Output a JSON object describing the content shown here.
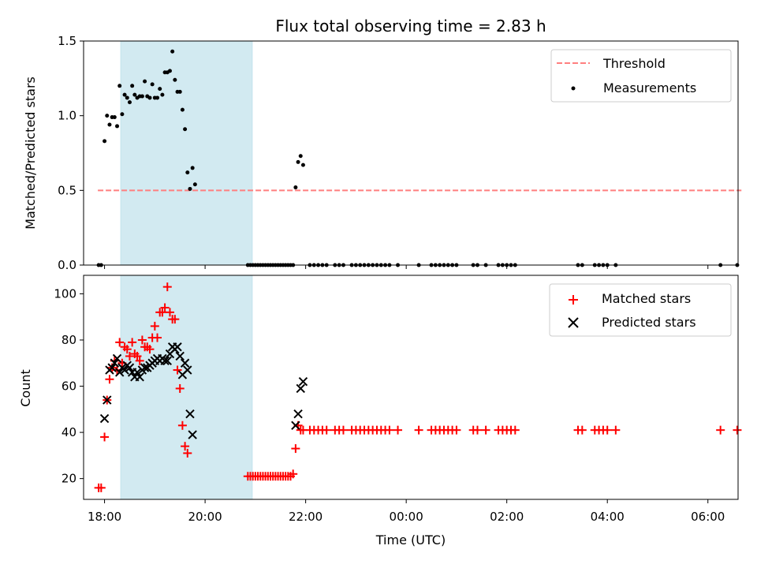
{
  "chart_data": [
    {
      "type": "scatter",
      "title": "Flux total observing time = 2.83 h",
      "xlabel": "",
      "ylabel": "Matched/Predicted stars",
      "xlim": [
        "17:35",
        "06:36 (+1d)"
      ],
      "ylim": [
        0,
        1.5
      ],
      "yticks": [
        "0.0",
        "0.5",
        "1.0",
        "1.5"
      ],
      "highlight_span": {
        "from": "17:58",
        "to": "20:48",
        "color": "#add8e6"
      },
      "threshold": {
        "name": "Threshold",
        "value": 0.5,
        "from": "17:52",
        "to": "06:40",
        "color": "#ff7f7f",
        "style": "dashed"
      },
      "legend": {
        "position": "top-right",
        "entries": [
          "Threshold",
          "Measurements"
        ]
      },
      "series": [
        {
          "name": "Measurements",
          "marker": "dot",
          "color": "#000000",
          "points": [
            [
              "17:53",
              0
            ],
            [
              "17:56",
              0
            ],
            [
              "18:00",
              0.83
            ],
            [
              "18:03",
              1.0
            ],
            [
              "18:06",
              0.94
            ],
            [
              "18:09",
              0.99
            ],
            [
              "18:12",
              0.99
            ],
            [
              "18:15",
              0.93
            ],
            [
              "18:18",
              1.2
            ],
            [
              "18:21",
              1.01
            ],
            [
              "18:24",
              1.14
            ],
            [
              "18:27",
              1.12
            ],
            [
              "18:30",
              1.09
            ],
            [
              "18:33",
              1.2
            ],
            [
              "18:36",
              1.14
            ],
            [
              "18:39",
              1.12
            ],
            [
              "18:42",
              1.13
            ],
            [
              "18:45",
              1.13
            ],
            [
              "18:48",
              1.23
            ],
            [
              "18:51",
              1.13
            ],
            [
              "18:54",
              1.12
            ],
            [
              "18:57",
              1.21
            ],
            [
              "19:00",
              1.12
            ],
            [
              "19:03",
              1.12
            ],
            [
              "19:06",
              1.18
            ],
            [
              "19:09",
              1.14
            ],
            [
              "19:12",
              1.29
            ],
            [
              "19:15",
              1.29
            ],
            [
              "19:18",
              1.3
            ],
            [
              "19:21",
              1.43
            ],
            [
              "19:24",
              1.24
            ],
            [
              "19:27",
              1.16
            ],
            [
              "19:30",
              1.16
            ],
            [
              "19:33",
              1.04
            ],
            [
              "19:36",
              0.91
            ],
            [
              "19:39",
              0.62
            ],
            [
              "19:42",
              0.51
            ],
            [
              "19:45",
              0.65
            ],
            [
              "19:48",
              0.54
            ],
            [
              "20:51",
              0
            ],
            [
              "20:54",
              0
            ],
            [
              "20:57",
              0
            ],
            [
              "21:00",
              0
            ],
            [
              "21:03",
              0
            ],
            [
              "21:06",
              0
            ],
            [
              "21:09",
              0
            ],
            [
              "21:12",
              0
            ],
            [
              "21:15",
              0
            ],
            [
              "21:18",
              0
            ],
            [
              "21:21",
              0
            ],
            [
              "21:24",
              0
            ],
            [
              "21:27",
              0
            ],
            [
              "21:30",
              0
            ],
            [
              "21:33",
              0
            ],
            [
              "21:36",
              0
            ],
            [
              "21:39",
              0
            ],
            [
              "21:42",
              0
            ],
            [
              "21:45",
              0
            ],
            [
              "21:48",
              0.52
            ],
            [
              "21:51",
              0.69
            ],
            [
              "21:54",
              0.73
            ],
            [
              "21:57",
              0.67
            ],
            [
              "22:05",
              0
            ],
            [
              "22:10",
              0
            ],
            [
              "22:15",
              0
            ],
            [
              "22:20",
              0
            ],
            [
              "22:25",
              0
            ],
            [
              "22:35",
              0
            ],
            [
              "22:40",
              0
            ],
            [
              "22:45",
              0
            ],
            [
              "22:55",
              0
            ],
            [
              "23:00",
              0
            ],
            [
              "23:05",
              0
            ],
            [
              "23:10",
              0
            ],
            [
              "23:15",
              0
            ],
            [
              "23:20",
              0
            ],
            [
              "23:25",
              0
            ],
            [
              "23:30",
              0
            ],
            [
              "23:35",
              0
            ],
            [
              "23:40",
              0
            ],
            [
              "23:50",
              0
            ],
            [
              "00:15",
              0
            ],
            [
              "00:30",
              0
            ],
            [
              "00:35",
              0
            ],
            [
              "00:40",
              0
            ],
            [
              "00:45",
              0
            ],
            [
              "00:50",
              0
            ],
            [
              "00:55",
              0
            ],
            [
              "01:00",
              0
            ],
            [
              "01:20",
              0
            ],
            [
              "01:25",
              0
            ],
            [
              "01:35",
              0
            ],
            [
              "01:50",
              0
            ],
            [
              "01:55",
              0
            ],
            [
              "02:00",
              0
            ],
            [
              "02:05",
              0
            ],
            [
              "02:10",
              0
            ],
            [
              "03:25",
              0
            ],
            [
              "03:30",
              0
            ],
            [
              "03:45",
              0
            ],
            [
              "03:50",
              0
            ],
            [
              "03:55",
              0
            ],
            [
              "04:00",
              0
            ],
            [
              "04:10",
              0
            ],
            [
              "06:15",
              0
            ],
            [
              "06:35",
              0
            ]
          ]
        }
      ]
    },
    {
      "type": "scatter",
      "title": "",
      "xlabel": "Time (UTC)",
      "ylabel": "Count",
      "xlim": [
        "17:35",
        "06:36 (+1d)"
      ],
      "ylim": [
        11,
        108
      ],
      "xticks": [
        "18:00",
        "20:00",
        "22:00",
        "00:00",
        "02:00",
        "04:00",
        "06:00"
      ],
      "yticks": [
        "20",
        "40",
        "60",
        "80",
        "100"
      ],
      "highlight_span": {
        "from": "17:58",
        "to": "20:48",
        "color": "#add8e6"
      },
      "legend": {
        "position": "top-right",
        "entries": [
          "Matched stars",
          "Predicted stars"
        ]
      },
      "series": [
        {
          "name": "Matched stars",
          "marker": "plus",
          "color": "#ff0000",
          "points": [
            [
              "17:53",
              16
            ],
            [
              "17:56",
              16
            ],
            [
              "18:00",
              38
            ],
            [
              "18:03",
              54
            ],
            [
              "18:06",
              63
            ],
            [
              "18:09",
              68
            ],
            [
              "18:12",
              71
            ],
            [
              "18:15",
              67
            ],
            [
              "18:18",
              79
            ],
            [
              "18:21",
              70
            ],
            [
              "18:24",
              77
            ],
            [
              "18:27",
              76
            ],
            [
              "18:30",
              73
            ],
            [
              "18:33",
              79
            ],
            [
              "18:36",
              74
            ],
            [
              "18:39",
              73
            ],
            [
              "18:42",
              71
            ],
            [
              "18:45",
              80
            ],
            [
              "18:48",
              77
            ],
            [
              "18:51",
              77
            ],
            [
              "18:54",
              76
            ],
            [
              "18:57",
              81
            ],
            [
              "19:00",
              86
            ],
            [
              "19:03",
              81
            ],
            [
              "19:06",
              92
            ],
            [
              "19:09",
              92
            ],
            [
              "19:12",
              94
            ],
            [
              "19:15",
              103
            ],
            [
              "19:18",
              92
            ],
            [
              "19:21",
              89
            ],
            [
              "19:24",
              89
            ],
            [
              "19:27",
              67
            ],
            [
              "19:30",
              59
            ],
            [
              "19:33",
              43
            ],
            [
              "19:36",
              34
            ],
            [
              "19:39",
              31
            ],
            [
              "20:51",
              21
            ],
            [
              "20:54",
              21
            ],
            [
              "20:57",
              21
            ],
            [
              "21:00",
              21
            ],
            [
              "21:03",
              21
            ],
            [
              "21:06",
              21
            ],
            [
              "21:09",
              21
            ],
            [
              "21:12",
              21
            ],
            [
              "21:15",
              21
            ],
            [
              "21:18",
              21
            ],
            [
              "21:21",
              21
            ],
            [
              "21:24",
              21
            ],
            [
              "21:27",
              21
            ],
            [
              "21:30",
              21
            ],
            [
              "21:33",
              21
            ],
            [
              "21:36",
              21
            ],
            [
              "21:39",
              21
            ],
            [
              "21:42",
              21
            ],
            [
              "21:45",
              22
            ],
            [
              "21:48",
              33
            ],
            [
              "21:51",
              43
            ],
            [
              "21:54",
              41
            ],
            [
              "21:57",
              41
            ],
            [
              "22:05",
              41
            ],
            [
              "22:10",
              41
            ],
            [
              "22:15",
              41
            ],
            [
              "22:20",
              41
            ],
            [
              "22:25",
              41
            ],
            [
              "22:35",
              41
            ],
            [
              "22:40",
              41
            ],
            [
              "22:45",
              41
            ],
            [
              "22:55",
              41
            ],
            [
              "23:00",
              41
            ],
            [
              "23:05",
              41
            ],
            [
              "23:10",
              41
            ],
            [
              "23:15",
              41
            ],
            [
              "23:20",
              41
            ],
            [
              "23:25",
              41
            ],
            [
              "23:30",
              41
            ],
            [
              "23:35",
              41
            ],
            [
              "23:40",
              41
            ],
            [
              "23:50",
              41
            ],
            [
              "00:15",
              41
            ],
            [
              "00:30",
              41
            ],
            [
              "00:35",
              41
            ],
            [
              "00:40",
              41
            ],
            [
              "00:45",
              41
            ],
            [
              "00:50",
              41
            ],
            [
              "00:55",
              41
            ],
            [
              "01:00",
              41
            ],
            [
              "01:20",
              41
            ],
            [
              "01:25",
              41
            ],
            [
              "01:35",
              41
            ],
            [
              "01:50",
              41
            ],
            [
              "01:55",
              41
            ],
            [
              "02:00",
              41
            ],
            [
              "02:05",
              41
            ],
            [
              "02:10",
              41
            ],
            [
              "03:25",
              41
            ],
            [
              "03:30",
              41
            ],
            [
              "03:45",
              41
            ],
            [
              "03:50",
              41
            ],
            [
              "03:55",
              41
            ],
            [
              "04:00",
              41
            ],
            [
              "04:10",
              41
            ],
            [
              "06:15",
              41
            ],
            [
              "06:35",
              41
            ]
          ]
        },
        {
          "name": "Predicted stars",
          "marker": "x",
          "color": "#000000",
          "points": [
            [
              "18:00",
              46
            ],
            [
              "18:03",
              54
            ],
            [
              "18:06",
              67
            ],
            [
              "18:09",
              68
            ],
            [
              "18:12",
              70
            ],
            [
              "18:15",
              72
            ],
            [
              "18:18",
              66
            ],
            [
              "18:21",
              68
            ],
            [
              "18:24",
              67
            ],
            [
              "18:27",
              69
            ],
            [
              "18:30",
              68
            ],
            [
              "18:33",
              66
            ],
            [
              "18:36",
              64
            ],
            [
              "18:39",
              66
            ],
            [
              "18:42",
              64
            ],
            [
              "18:45",
              67
            ],
            [
              "18:48",
              68
            ],
            [
              "18:51",
              68
            ],
            [
              "18:54",
              69
            ],
            [
              "18:57",
              70
            ],
            [
              "19:00",
              71
            ],
            [
              "19:03",
              72
            ],
            [
              "19:06",
              71
            ],
            [
              "19:09",
              72
            ],
            [
              "19:12",
              71
            ],
            [
              "19:15",
              71
            ],
            [
              "19:18",
              74
            ],
            [
              "19:21",
              77
            ],
            [
              "19:24",
              76
            ],
            [
              "19:27",
              77
            ],
            [
              "19:30",
              73
            ],
            [
              "19:33",
              65
            ],
            [
              "19:36",
              70
            ],
            [
              "19:39",
              67
            ],
            [
              "19:42",
              48
            ],
            [
              "19:45",
              39
            ],
            [
              "21:48",
              43
            ],
            [
              "21:51",
              48
            ],
            [
              "21:54",
              59
            ],
            [
              "21:57",
              62
            ]
          ]
        }
      ]
    }
  ]
}
